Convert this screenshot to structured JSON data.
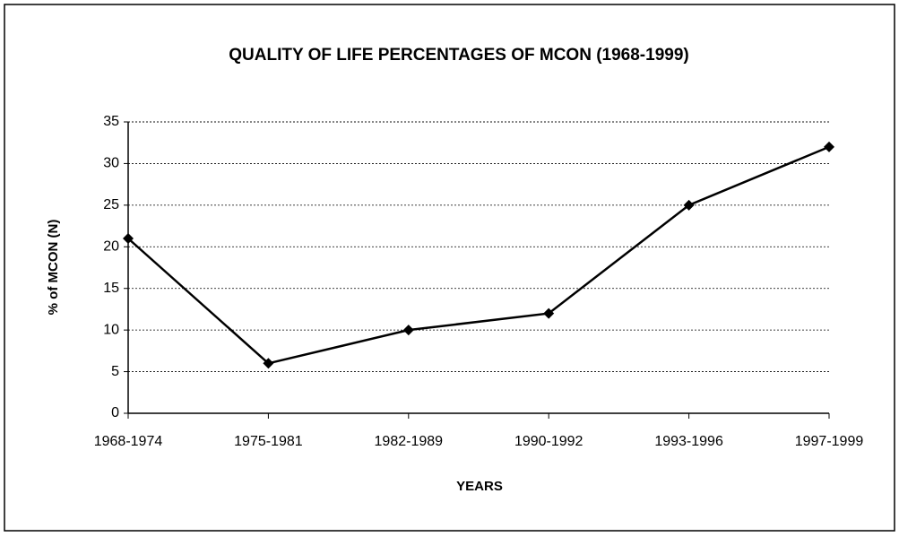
{
  "chart_data": {
    "type": "line",
    "title": "QUALITY OF LIFE PERCENTAGES OF MCON (1968-1999)",
    "x_label": "YEARS",
    "y_label": "% of MCON (N)",
    "categories": [
      "1968-1974",
      "1975-1981",
      "1982-1989",
      "1990-1992",
      "1993-1996",
      "1997-1999"
    ],
    "values": [
      21,
      6,
      10,
      12,
      25,
      32
    ],
    "color": "#000000",
    "ylim": [
      0,
      35
    ],
    "yticks": [
      0,
      5,
      10,
      15,
      20,
      25,
      30,
      35
    ],
    "grid": true
  }
}
